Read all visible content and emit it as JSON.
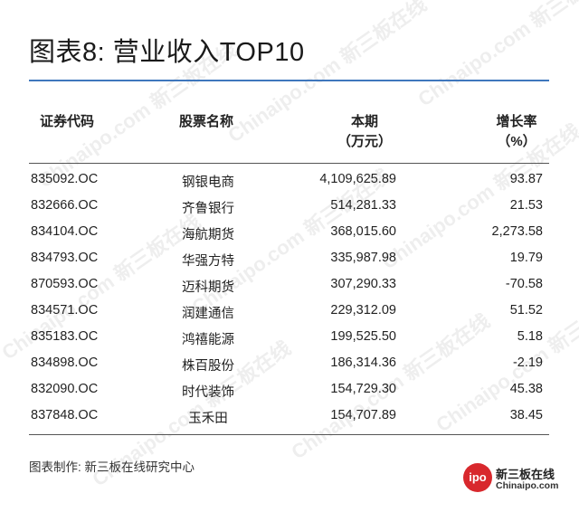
{
  "title": "图表8: 营业收入TOP10",
  "columns": {
    "code": "证券代码",
    "name": "股票名称",
    "amount_line1": "本期",
    "amount_line2": "（万元）",
    "growth_line1": "增长率",
    "growth_line2": "（%）"
  },
  "rows": [
    {
      "code": "835092.OC",
      "name": "钢银电商",
      "amount": "4,109,625.89",
      "growth": "93.87"
    },
    {
      "code": "832666.OC",
      "name": "齐鲁银行",
      "amount": "514,281.33",
      "growth": "21.53"
    },
    {
      "code": "834104.OC",
      "name": "海航期货",
      "amount": "368,015.60",
      "growth": "2,273.58"
    },
    {
      "code": "834793.OC",
      "name": "华强方特",
      "amount": "335,987.98",
      "growth": "19.79"
    },
    {
      "code": "870593.OC",
      "name": "迈科期货",
      "amount": "307,290.33",
      "growth": "-70.58"
    },
    {
      "code": "834571.OC",
      "name": "润建通信",
      "amount": "229,312.09",
      "growth": "51.52"
    },
    {
      "code": "835183.OC",
      "name": "鸿禧能源",
      "amount": "199,525.50",
      "growth": "5.18"
    },
    {
      "code": "834898.OC",
      "name": "株百股份",
      "amount": "186,314.36",
      "growth": "-2.19"
    },
    {
      "code": "832090.OC",
      "name": "时代装饰",
      "amount": "154,729.30",
      "growth": "45.38"
    },
    {
      "code": "837848.OC",
      "name": "玉禾田",
      "amount": "154,707.89",
      "growth": "38.45"
    }
  ],
  "source": "图表制作: 新三板在线研究中心",
  "logo": {
    "badge": "ipo",
    "name": "新三板在线",
    "url": "Chinaipo.com"
  },
  "watermark": "Chinaipo.com 新三板在线",
  "colors": {
    "accent_rule": "#3f77bd",
    "logo_red": "#d8282d"
  }
}
